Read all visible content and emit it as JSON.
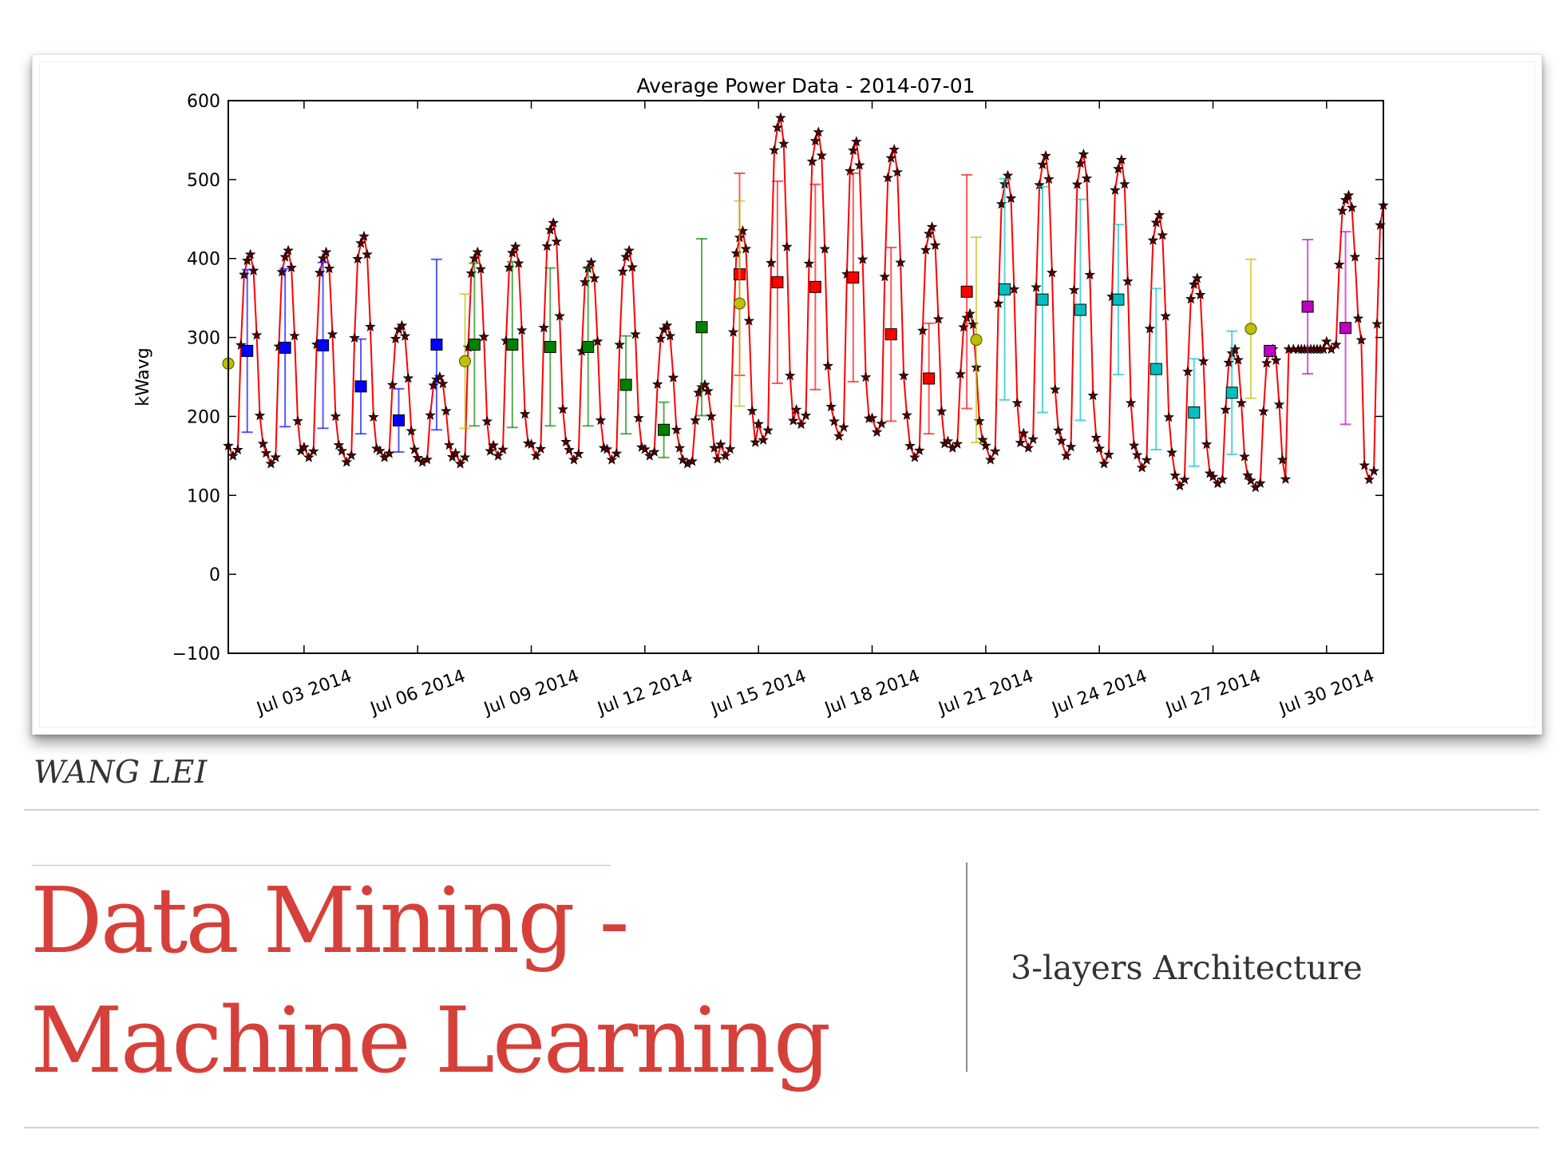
{
  "slide": {
    "author": "WANG LEI",
    "title_line1": "Data Mining -",
    "title_line2": "Machine Learning",
    "subtitle": "3-layers Architecture",
    "title_color": "#d6403a"
  },
  "chart_data": {
    "type": "line",
    "title": "Average Power Data - 2014-07-01",
    "xlabel": "",
    "ylabel": "kWavg",
    "xlim": [
      "2014-07-01",
      "2014-07-31 12:00"
    ],
    "ylim": [
      -100,
      600
    ],
    "yticks": [
      -100,
      0,
      100,
      200,
      300,
      400,
      500,
      600
    ],
    "yticklabels": [
      "−100",
      "0",
      "100",
      "200",
      "300",
      "400",
      "500",
      "600"
    ],
    "xticks": [
      "2014-07-03",
      "2014-07-06",
      "2014-07-09",
      "2014-07-12",
      "2014-07-15",
      "2014-07-18",
      "2014-07-21",
      "2014-07-24",
      "2014-07-27",
      "2014-07-30"
    ],
    "xticklabels": [
      "Jul 03 2014",
      "Jul 06 2014",
      "Jul 09 2014",
      "Jul 12 2014",
      "Jul 15 2014",
      "Jul 18 2014",
      "Jul 21 2014",
      "Jul 24 2014",
      "Jul 27 2014",
      "Jul 30 2014"
    ],
    "grid": false,
    "series": [
      {
        "style": "red line with black star markers",
        "color": "#ff0000",
        "marker_color": "#000000",
        "daily_profile": [
          {
            "date": "2014-07-01",
            "min": 150,
            "max": 405
          },
          {
            "date": "2014-07-02",
            "min": 140,
            "max": 410
          },
          {
            "date": "2014-07-03",
            "min": 148,
            "max": 408
          },
          {
            "date": "2014-07-04",
            "min": 142,
            "max": 428
          },
          {
            "date": "2014-07-05",
            "min": 148,
            "max": 315
          },
          {
            "date": "2014-07-06",
            "min": 142,
            "max": 250
          },
          {
            "date": "2014-07-07",
            "min": 140,
            "max": 408
          },
          {
            "date": "2014-07-08",
            "min": 150,
            "max": 415
          },
          {
            "date": "2014-07-09",
            "min": 150,
            "max": 445
          },
          {
            "date": "2014-07-10",
            "min": 145,
            "max": 395
          },
          {
            "date": "2014-07-11",
            "min": 145,
            "max": 410
          },
          {
            "date": "2014-07-12",
            "min": 150,
            "max": 315
          },
          {
            "date": "2014-07-13",
            "min": 140,
            "max": 240
          },
          {
            "date": "2014-07-14",
            "min": 150,
            "max": 435
          },
          {
            "date": "2014-07-15",
            "min": 170,
            "max": 578
          },
          {
            "date": "2014-07-16",
            "min": 190,
            "max": 560
          },
          {
            "date": "2014-07-17",
            "min": 175,
            "max": 548
          },
          {
            "date": "2014-07-18",
            "min": 180,
            "max": 538
          },
          {
            "date": "2014-07-19",
            "min": 148,
            "max": 440
          },
          {
            "date": "2014-07-20",
            "min": 160,
            "max": 330
          },
          {
            "date": "2014-07-21",
            "min": 145,
            "max": 505
          },
          {
            "date": "2014-07-22",
            "min": 160,
            "max": 530
          },
          {
            "date": "2014-07-23",
            "min": 150,
            "max": 532
          },
          {
            "date": "2014-07-24",
            "min": 140,
            "max": 525
          },
          {
            "date": "2014-07-25",
            "min": 135,
            "max": 455
          },
          {
            "date": "2014-07-26",
            "min": 112,
            "max": 375
          },
          {
            "date": "2014-07-27",
            "min": 115,
            "max": 285
          },
          {
            "date": "2014-07-28",
            "min": 110,
            "max": 285
          },
          {
            "date": "2014-07-29",
            "min": 285,
            "max": 285
          },
          {
            "date": "2014-07-30",
            "min": 285,
            "max": 480
          },
          {
            "date": "2014-07-31",
            "min": 120,
            "max": 478
          }
        ]
      }
    ],
    "daily_means": [
      {
        "x": "2014-07-01 12:00",
        "y": 283,
        "err": 103,
        "color": "#0000ff",
        "marker": "square"
      },
      {
        "x": "2014-07-02 12:00",
        "y": 287,
        "err": 100,
        "color": "#0000ff",
        "marker": "square"
      },
      {
        "x": "2014-07-03 12:00",
        "y": 290,
        "err": 105,
        "color": "#0000ff",
        "marker": "square"
      },
      {
        "x": "2014-07-04 12:00",
        "y": 238,
        "err": 60,
        "color": "#0000ff",
        "marker": "square"
      },
      {
        "x": "2014-07-05 12:00",
        "y": 195,
        "err": 40,
        "color": "#0000ff",
        "marker": "square"
      },
      {
        "x": "2014-07-06 12:00",
        "y": 291,
        "err": 108,
        "color": "#0000ff",
        "marker": "square"
      },
      {
        "x": "2014-07-07 12:00",
        "y": 291,
        "err": 103,
        "color": "#008000",
        "marker": "square"
      },
      {
        "x": "2014-07-08 12:00",
        "y": 291,
        "err": 105,
        "color": "#008000",
        "marker": "square"
      },
      {
        "x": "2014-07-09 12:00",
        "y": 288,
        "err": 100,
        "color": "#008000",
        "marker": "square"
      },
      {
        "x": "2014-07-10 12:00",
        "y": 288,
        "err": 100,
        "color": "#008000",
        "marker": "square"
      },
      {
        "x": "2014-07-11 12:00",
        "y": 240,
        "err": 62,
        "color": "#008000",
        "marker": "square"
      },
      {
        "x": "2014-07-12 12:00",
        "y": 183,
        "err": 35,
        "color": "#008000",
        "marker": "square"
      },
      {
        "x": "2014-07-13 12:00",
        "y": 313,
        "err": 112,
        "color": "#008000",
        "marker": "square"
      },
      {
        "x": "2014-07-14 12:00",
        "y": 380,
        "err": 128,
        "color": "#ff0000",
        "marker": "square"
      },
      {
        "x": "2014-07-15 12:00",
        "y": 370,
        "err": 128,
        "color": "#ff0000",
        "marker": "square"
      },
      {
        "x": "2014-07-16 12:00",
        "y": 364,
        "err": 130,
        "color": "#ff0000",
        "marker": "square"
      },
      {
        "x": "2014-07-17 12:00",
        "y": 376,
        "err": 132,
        "color": "#ff0000",
        "marker": "square"
      },
      {
        "x": "2014-07-18 12:00",
        "y": 304,
        "err": 110,
        "color": "#ff0000",
        "marker": "square"
      },
      {
        "x": "2014-07-19 12:00",
        "y": 248,
        "err": 70,
        "color": "#ff0000",
        "marker": "square"
      },
      {
        "x": "2014-07-20 12:00",
        "y": 358,
        "err": 148,
        "color": "#ff0000",
        "marker": "square"
      },
      {
        "x": "2014-07-21 12:00",
        "y": 361,
        "err": 140,
        "color": "#00bfbf",
        "marker": "square"
      },
      {
        "x": "2014-07-22 12:00",
        "y": 348,
        "err": 143,
        "color": "#00bfbf",
        "marker": "square"
      },
      {
        "x": "2014-07-23 12:00",
        "y": 335,
        "err": 140,
        "color": "#00bfbf",
        "marker": "square"
      },
      {
        "x": "2014-07-24 12:00",
        "y": 348,
        "err": 95,
        "color": "#00bfbf",
        "marker": "square"
      },
      {
        "x": "2014-07-25 12:00",
        "y": 260,
        "err": 102,
        "color": "#00bfbf",
        "marker": "square"
      },
      {
        "x": "2014-07-26 12:00",
        "y": 205,
        "err": 68,
        "color": "#00bfbf",
        "marker": "square"
      },
      {
        "x": "2014-07-27 12:00",
        "y": 230,
        "err": 78,
        "color": "#00bfbf",
        "marker": "square"
      },
      {
        "x": "2014-07-28 12:00",
        "y": 283,
        "err": 0,
        "color": "#bf00bf",
        "marker": "square"
      },
      {
        "x": "2014-07-29 12:00",
        "y": 339,
        "err": 85,
        "color": "#bf00bf",
        "marker": "square"
      },
      {
        "x": "2014-07-30 12:00",
        "y": 312,
        "err": 122,
        "color": "#bf00bf",
        "marker": "square"
      }
    ],
    "weekly_means": [
      {
        "x": "2014-07-01",
        "y": 267,
        "color": "#bfbf00",
        "marker": "circle"
      },
      {
        "x": "2014-07-07 06:00",
        "y": 270,
        "err": 85,
        "color": "#bfbf00",
        "marker": "circle"
      },
      {
        "x": "2014-07-14 12:00",
        "y": 343,
        "err": 130,
        "color": "#bfbf00",
        "marker": "circle"
      },
      {
        "x": "2014-07-20 18:00",
        "y": 297,
        "err": 130,
        "color": "#bfbf00",
        "marker": "circle"
      },
      {
        "x": "2014-07-28 00:00",
        "y": 311,
        "err": 88,
        "color": "#bfbf00",
        "marker": "circle"
      }
    ]
  }
}
